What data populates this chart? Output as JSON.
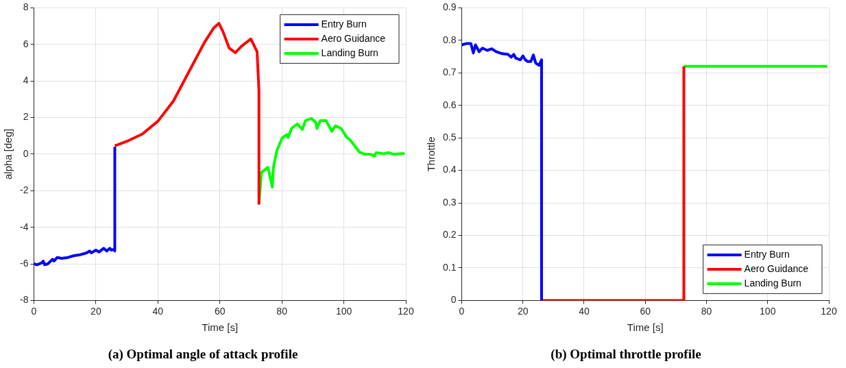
{
  "chart_data": [
    {
      "type": "line",
      "title": "(a) Optimal angle of attack profile",
      "xlabel": "Time [s]",
      "ylabel": "alpha [deg]",
      "xlim": [
        0,
        120
      ],
      "xticks": [
        0,
        20,
        40,
        60,
        80,
        100,
        120
      ],
      "ylim": [
        -8,
        8
      ],
      "yticks": [
        -8,
        -6,
        -4,
        -2,
        0,
        2,
        4,
        6,
        8
      ],
      "grid": true,
      "legend": "top right",
      "series": [
        {
          "name": "Entry Burn",
          "color": "#0000ff",
          "x": [
            0,
            1,
            2.5,
            3,
            3.5,
            4.5,
            6,
            6.5,
            7.5,
            9,
            11,
            13,
            15,
            17,
            18,
            18.5,
            20,
            21,
            22.5,
            23.5,
            24.5,
            25,
            26,
            26.1,
            26.1
          ],
          "values": [
            -6.0,
            -6.05,
            -5.95,
            -5.85,
            -6.05,
            -6.0,
            -5.75,
            -5.85,
            -5.65,
            -5.7,
            -5.65,
            -5.55,
            -5.5,
            -5.4,
            -5.3,
            -5.4,
            -5.25,
            -5.35,
            -5.15,
            -5.3,
            -5.15,
            -5.25,
            -5.2,
            -5.3,
            0.4
          ]
        },
        {
          "name": "Aero Guidance",
          "color": "#ff0000",
          "x": [
            26.1,
            30,
            35,
            40,
            45,
            50,
            55,
            58,
            59.7,
            61,
            63,
            65,
            67,
            70,
            72,
            72.6,
            72.6
          ],
          "values": [
            0.45,
            0.7,
            1.1,
            1.8,
            2.9,
            4.5,
            6.1,
            6.9,
            7.15,
            6.7,
            5.8,
            5.55,
            5.9,
            6.3,
            5.6,
            3.5,
            -2.7
          ]
        },
        {
          "name": "Landing Burn",
          "color": "#00ff00",
          "x": [
            72.6,
            73.4,
            75.5,
            76.9,
            77.3,
            78.4,
            80.1,
            81.6,
            82.0,
            83.1,
            85.0,
            86.6,
            87.6,
            89.5,
            90.9,
            91.3,
            92.4,
            94.3,
            96.1,
            97.3,
            99.1,
            101,
            101.9,
            105.1,
            106.6,
            108.4,
            109.9,
            110.4,
            112.9,
            114.4,
            115.9,
            119.6
          ],
          "values": [
            -2.7,
            -1.0,
            -0.72,
            -1.8,
            -0.7,
            0.2,
            0.88,
            1.07,
            0.9,
            1.4,
            1.65,
            1.35,
            1.83,
            1.95,
            1.75,
            1.4,
            1.83,
            1.83,
            1.25,
            1.55,
            1.4,
            0.9,
            0.8,
            0.1,
            0.0,
            0.0,
            -0.1,
            0.08,
            0.02,
            0.08,
            0.0,
            0.03
          ]
        }
      ]
    },
    {
      "type": "line",
      "title": "(b) Optimal throttle profile",
      "xlabel": "Time [s]",
      "ylabel": "Throttle",
      "xlim": [
        0,
        120
      ],
      "xticks": [
        0,
        20,
        40,
        60,
        80,
        100,
        120
      ],
      "ylim": [
        0,
        0.9
      ],
      "yticks": [
        0,
        0.1,
        0.2,
        0.3,
        0.4,
        0.5,
        0.6,
        0.7,
        0.8,
        0.9
      ],
      "grid": true,
      "legend": "bottom right",
      "series": [
        {
          "name": "Entry Burn",
          "color": "#0000ff",
          "x": [
            0,
            1.5,
            3.0,
            3.8,
            4.5,
            5.7,
            6.8,
            8.3,
            9.8,
            11.3,
            13.2,
            15.1,
            16.2,
            17,
            17.7,
            19.2,
            20,
            20.8,
            21.5,
            22.6,
            23.4,
            24.2,
            25.3,
            26.1,
            26.1
          ],
          "values": [
            0.786,
            0.79,
            0.79,
            0.761,
            0.786,
            0.765,
            0.776,
            0.769,
            0.774,
            0.765,
            0.759,
            0.757,
            0.748,
            0.757,
            0.745,
            0.74,
            0.752,
            0.74,
            0.735,
            0.735,
            0.755,
            0.73,
            0.723,
            0.74,
            0
          ]
        },
        {
          "name": "Aero Guidance",
          "color": "#ff0000",
          "x": [
            26.1,
            72.6,
            72.6
          ],
          "values": [
            0,
            0,
            0.72
          ]
        },
        {
          "name": "Landing Burn",
          "color": "#00ff00",
          "x": [
            72.6,
            119.5
          ],
          "values": [
            0.72,
            0.72
          ]
        }
      ]
    }
  ]
}
